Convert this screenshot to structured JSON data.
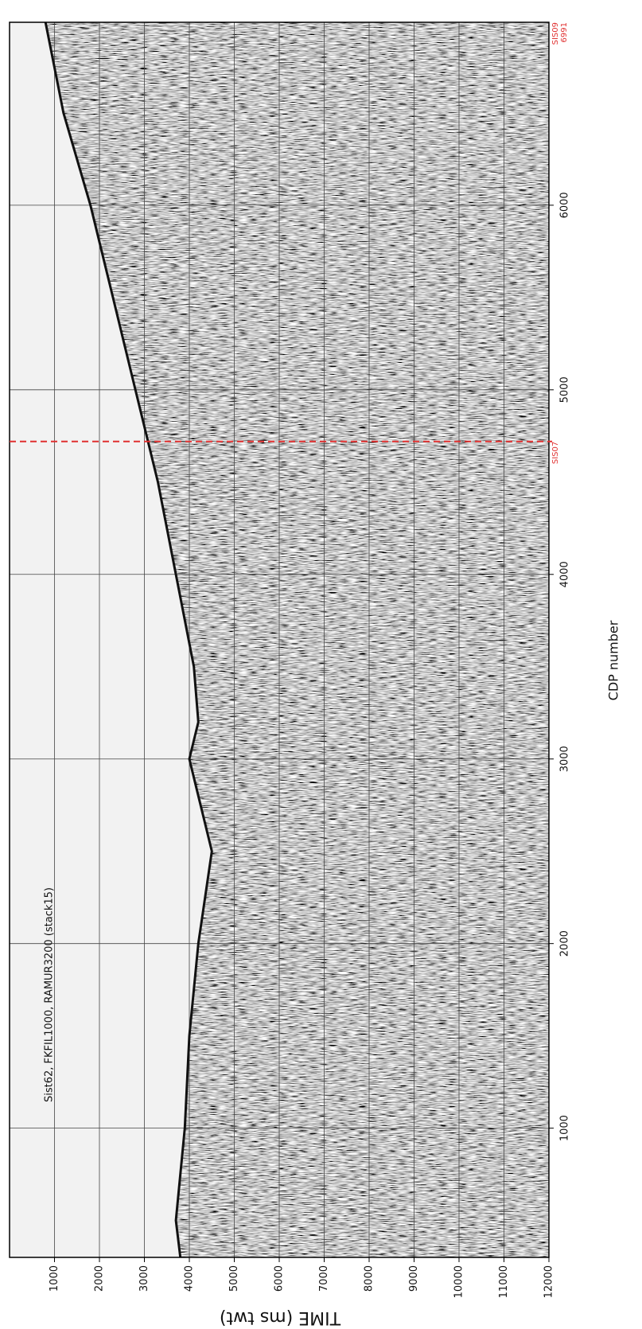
{
  "chart_data": {
    "type": "seismic",
    "annotation": "Sist62, FKFIL1000, RAMUR3200 (stack15)",
    "x_label": "CDP number",
    "y_label": "TIME (ms twt)",
    "xlim": [
      300,
      6991
    ],
    "xticks": [
      1000,
      2000,
      3000,
      4000,
      5000,
      6000
    ],
    "ylim": [
      0,
      12000
    ],
    "yticks": [
      1000,
      2000,
      3000,
      4000,
      5000,
      6000,
      7000,
      8000,
      9000,
      10000,
      11000,
      12000
    ],
    "grid": true,
    "reflector": {
      "color": "#111111",
      "x": [
        300,
        500,
        1000,
        1500,
        2000,
        2500,
        2800,
        3000,
        3200,
        3500,
        4000,
        4500,
        5000,
        5500,
        6000,
        6500,
        6991
      ],
      "values": [
        3800,
        3700,
        3900,
        4000,
        4200,
        4500,
        4200,
        4000,
        4200,
        4100,
        3700,
        3300,
        2800,
        2300,
        1800,
        1200,
        800
      ]
    },
    "markers": [
      {
        "label": "SIS07",
        "x": 4720,
        "color": "#e03030",
        "line": true
      },
      {
        "label": "SIS09",
        "x": 6991,
        "color": "#e03030",
        "line": false
      }
    ]
  }
}
